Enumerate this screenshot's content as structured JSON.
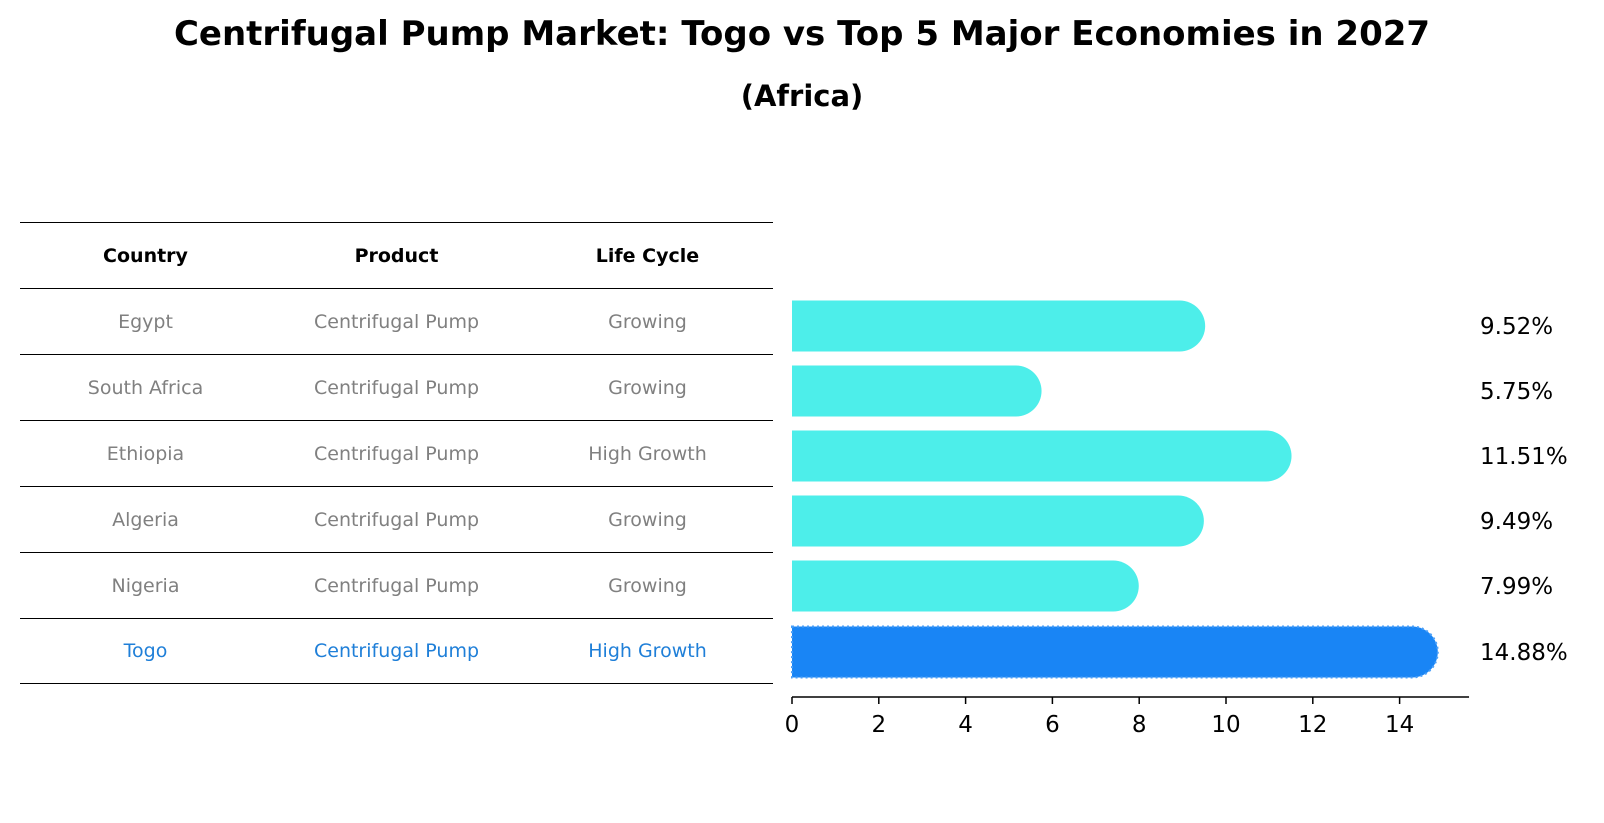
{
  "chart_data": {
    "type": "bar",
    "orientation": "horizontal",
    "title": "Centrifugal Pump Market: Togo vs Top 5 Major Economies in 2027",
    "subtitle": "(Africa)",
    "categories": [
      "Egypt",
      "South Africa",
      "Ethiopia",
      "Algeria",
      "Nigeria",
      "Togo"
    ],
    "values": [
      9.52,
      5.75,
      11.51,
      9.49,
      7.99,
      14.88
    ],
    "value_labels": [
      "9.52%",
      "5.75%",
      "11.51%",
      "9.49%",
      "7.99%",
      "14.88%"
    ],
    "highlight_category": "Togo",
    "xlim": [
      0,
      15.6
    ],
    "xticks": [
      "0",
      "2",
      "4",
      "6",
      "8",
      "10",
      "12",
      "14"
    ],
    "colors": {
      "bar": "#4deeea",
      "highlight": "#1985f5",
      "highlight_text": "#1f7fd8",
      "muted_text": "#808080"
    }
  },
  "table": {
    "headers": [
      "Country",
      "Product",
      "Life Cycle"
    ],
    "rows": [
      [
        "Egypt",
        "Centrifugal Pump",
        "Growing"
      ],
      [
        "South Africa",
        "Centrifugal Pump",
        "Growing"
      ],
      [
        "Ethiopia",
        "Centrifugal Pump",
        "High Growth"
      ],
      [
        "Algeria",
        "Centrifugal Pump",
        "Growing"
      ],
      [
        "Nigeria",
        "Centrifugal Pump",
        "Growing"
      ],
      [
        "Togo",
        "Centrifugal Pump",
        "High Growth"
      ]
    ]
  }
}
